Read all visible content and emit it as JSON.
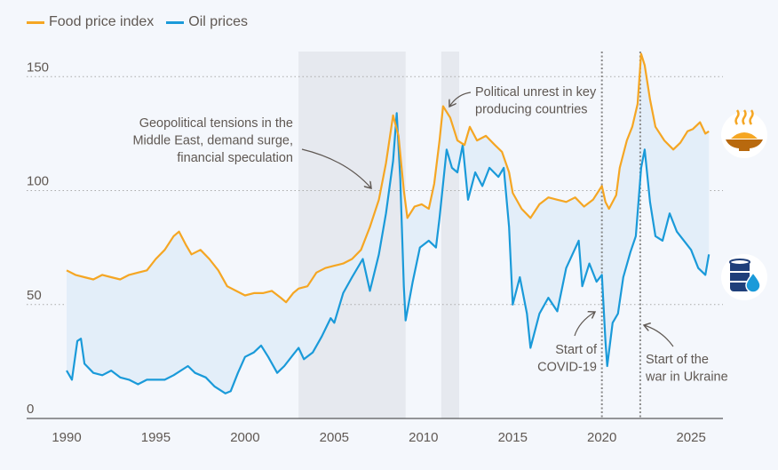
{
  "chart_data": {
    "type": "line",
    "title": "",
    "xlabel": "",
    "ylabel": "",
    "xlim": [
      1990,
      2026.5
    ],
    "ylim": [
      0,
      160
    ],
    "x_ticks": [
      1990,
      1995,
      2000,
      2005,
      2010,
      2015,
      2020,
      2025
    ],
    "x_tick_labels": [
      "1990",
      "1995",
      "2000",
      "2005",
      "2010",
      "2015",
      "2020",
      "2025"
    ],
    "y_ticks": [
      0,
      50,
      100,
      150
    ],
    "y_tick_labels": [
      "0",
      "50",
      "100",
      "150"
    ],
    "grid": "horizontal dotted",
    "legend_position": "top-left",
    "colors": {
      "food": "#f5a623",
      "oil": "#1a9ad9",
      "fill": "#e3eef9",
      "shade": "#e6e9ef"
    },
    "series": [
      {
        "name": "Food price index",
        "points": [
          [
            1990,
            65
          ],
          [
            1990.5,
            63
          ],
          [
            1991,
            62
          ],
          [
            1991.5,
            61
          ],
          [
            1992,
            63
          ],
          [
            1992.5,
            62
          ],
          [
            1993,
            61
          ],
          [
            1993.5,
            63
          ],
          [
            1994,
            64
          ],
          [
            1994.5,
            65
          ],
          [
            1995,
            70
          ],
          [
            1995.5,
            74
          ],
          [
            1996,
            80
          ],
          [
            1996.3,
            82
          ],
          [
            1996.7,
            76
          ],
          [
            1997,
            72
          ],
          [
            1997.5,
            74
          ],
          [
            1998,
            70
          ],
          [
            1998.5,
            65
          ],
          [
            1999,
            58
          ],
          [
            1999.5,
            56
          ],
          [
            2000,
            54
          ],
          [
            2000.5,
            55
          ],
          [
            2001,
            55
          ],
          [
            2001.5,
            56
          ],
          [
            2002,
            53
          ],
          [
            2002.3,
            51
          ],
          [
            2002.7,
            55
          ],
          [
            2003,
            57
          ],
          [
            2003.5,
            58
          ],
          [
            2004,
            64
          ],
          [
            2004.5,
            66
          ],
          [
            2005,
            67
          ],
          [
            2005.5,
            68
          ],
          [
            2006,
            70
          ],
          [
            2006.5,
            74
          ],
          [
            2007,
            84
          ],
          [
            2007.5,
            96
          ],
          [
            2007.9,
            112
          ],
          [
            2008.3,
            133
          ],
          [
            2008.6,
            124
          ],
          [
            2008.9,
            100
          ],
          [
            2009.1,
            88
          ],
          [
            2009.5,
            93
          ],
          [
            2009.9,
            94
          ],
          [
            2010.3,
            92
          ],
          [
            2010.6,
            103
          ],
          [
            2010.9,
            122
          ],
          [
            2011.1,
            137
          ],
          [
            2011.5,
            132
          ],
          [
            2011.9,
            122
          ],
          [
            2012.3,
            120
          ],
          [
            2012.6,
            128
          ],
          [
            2013,
            122
          ],
          [
            2013.5,
            124
          ],
          [
            2014,
            120
          ],
          [
            2014.4,
            117
          ],
          [
            2014.8,
            108
          ],
          [
            2015,
            99
          ],
          [
            2015.5,
            92
          ],
          [
            2016,
            88
          ],
          [
            2016.5,
            94
          ],
          [
            2017,
            97
          ],
          [
            2017.5,
            96
          ],
          [
            2018,
            95
          ],
          [
            2018.5,
            97
          ],
          [
            2019,
            93
          ],
          [
            2019.5,
            96
          ],
          [
            2020,
            102
          ],
          [
            2020.2,
            95
          ],
          [
            2020.4,
            92
          ],
          [
            2020.8,
            98
          ],
          [
            2021,
            110
          ],
          [
            2021.4,
            122
          ],
          [
            2021.7,
            128
          ],
          [
            2022,
            138
          ],
          [
            2022.2,
            160
          ],
          [
            2022.4,
            155
          ],
          [
            2022.7,
            140
          ],
          [
            2023,
            128
          ],
          [
            2023.5,
            122
          ],
          [
            2024,
            118
          ],
          [
            2024.4,
            121
          ],
          [
            2024.8,
            126
          ],
          [
            2025.1,
            127
          ],
          [
            2025.5,
            130
          ],
          [
            2025.8,
            125
          ],
          [
            2026,
            126
          ]
        ]
      },
      {
        "name": "Oil prices",
        "points": [
          [
            1990,
            21
          ],
          [
            1990.3,
            17
          ],
          [
            1990.6,
            34
          ],
          [
            1990.8,
            35
          ],
          [
            1991,
            24
          ],
          [
            1991.5,
            20
          ],
          [
            1992,
            19
          ],
          [
            1992.5,
            21
          ],
          [
            1993,
            18
          ],
          [
            1993.5,
            17
          ],
          [
            1994,
            15
          ],
          [
            1994.5,
            17
          ],
          [
            1995,
            17
          ],
          [
            1995.5,
            17
          ],
          [
            1996,
            19
          ],
          [
            1996.8,
            23
          ],
          [
            1997.2,
            20
          ],
          [
            1997.8,
            18
          ],
          [
            1998.3,
            14
          ],
          [
            1998.9,
            11
          ],
          [
            1999.2,
            12
          ],
          [
            1999.6,
            20
          ],
          [
            2000,
            27
          ],
          [
            2000.5,
            29
          ],
          [
            2000.9,
            32
          ],
          [
            2001.3,
            27
          ],
          [
            2001.8,
            20
          ],
          [
            2002.2,
            23
          ],
          [
            2002.7,
            28
          ],
          [
            2003,
            31
          ],
          [
            2003.3,
            26
          ],
          [
            2003.8,
            29
          ],
          [
            2004.3,
            36
          ],
          [
            2004.8,
            44
          ],
          [
            2005,
            42
          ],
          [
            2005.5,
            55
          ],
          [
            2006,
            62
          ],
          [
            2006.6,
            70
          ],
          [
            2007,
            56
          ],
          [
            2007.5,
            72
          ],
          [
            2007.9,
            90
          ],
          [
            2008.3,
            113
          ],
          [
            2008.5,
            134
          ],
          [
            2008.7,
            105
          ],
          [
            2008.9,
            58
          ],
          [
            2009,
            43
          ],
          [
            2009.4,
            60
          ],
          [
            2009.8,
            75
          ],
          [
            2010.3,
            78
          ],
          [
            2010.7,
            75
          ],
          [
            2010.9,
            88
          ],
          [
            2011.3,
            118
          ],
          [
            2011.6,
            110
          ],
          [
            2011.9,
            108
          ],
          [
            2012.2,
            120
          ],
          [
            2012.5,
            96
          ],
          [
            2012.9,
            108
          ],
          [
            2013.3,
            102
          ],
          [
            2013.7,
            110
          ],
          [
            2014.2,
            106
          ],
          [
            2014.5,
            110
          ],
          [
            2014.8,
            84
          ],
          [
            2015,
            50
          ],
          [
            2015.4,
            62
          ],
          [
            2015.8,
            46
          ],
          [
            2016,
            31
          ],
          [
            2016.5,
            46
          ],
          [
            2017,
            53
          ],
          [
            2017.5,
            47
          ],
          [
            2018,
            66
          ],
          [
            2018.7,
            78
          ],
          [
            2018.9,
            58
          ],
          [
            2019.3,
            68
          ],
          [
            2019.7,
            60
          ],
          [
            2020,
            63
          ],
          [
            2020.2,
            34
          ],
          [
            2020.3,
            23
          ],
          [
            2020.6,
            42
          ],
          [
            2020.9,
            46
          ],
          [
            2021.2,
            62
          ],
          [
            2021.6,
            73
          ],
          [
            2021.9,
            80
          ],
          [
            2022.2,
            110
          ],
          [
            2022.4,
            118
          ],
          [
            2022.7,
            95
          ],
          [
            2023,
            80
          ],
          [
            2023.4,
            78
          ],
          [
            2023.8,
            90
          ],
          [
            2024.2,
            82
          ],
          [
            2024.6,
            78
          ],
          [
            2025,
            74
          ],
          [
            2025.4,
            66
          ],
          [
            2025.8,
            63
          ],
          [
            2026,
            72
          ]
        ]
      }
    ],
    "shaded_periods": [
      [
        2003,
        2009
      ],
      [
        2011,
        2012
      ]
    ],
    "event_lines": [
      2020,
      2022.15
    ],
    "annotations": [
      {
        "id": "geo",
        "lines": [
          "Geopolitical tensions in the",
          "Middle East, demand surge,",
          "financial speculation"
        ]
      },
      {
        "id": "pol",
        "lines": [
          "Political unrest in key",
          "producing countries"
        ]
      },
      {
        "id": "covid",
        "lines": [
          "Start of",
          "COVID-19"
        ]
      },
      {
        "id": "war",
        "lines": [
          "Start of the",
          "war in Ukraine"
        ]
      }
    ]
  },
  "legend": {
    "food": "Food price index",
    "oil": "Oil prices"
  },
  "icons": {
    "food": "food-bowl-icon",
    "oil": "oil-barrel-icon"
  }
}
